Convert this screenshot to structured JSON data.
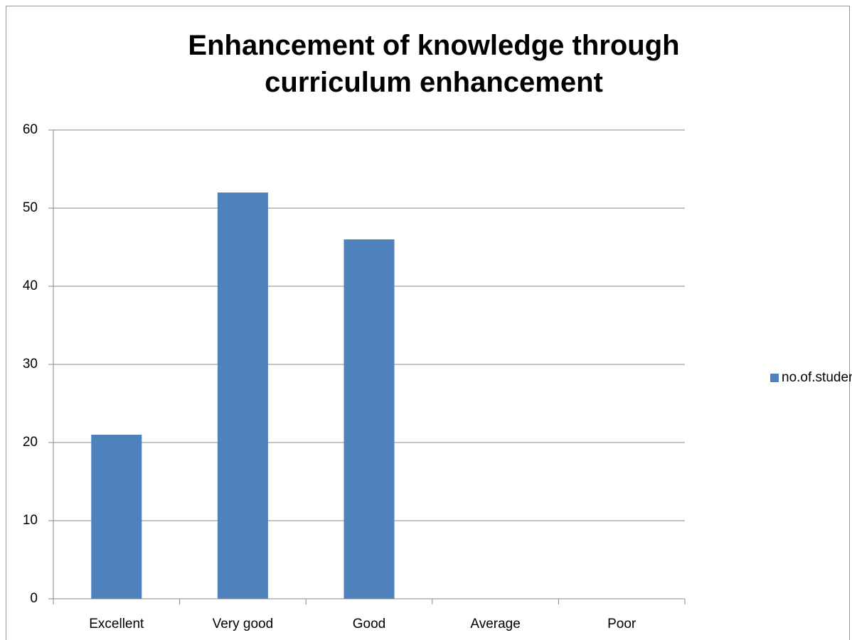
{
  "chart_data": {
    "type": "bar",
    "title": "Enhancement of knowledge through curriculum enhancement",
    "categories": [
      "Excellent",
      "Very good",
      "Good",
      "Average",
      "Poor"
    ],
    "series": [
      {
        "name": "no.of.students",
        "color": "#4f81bd",
        "values": [
          21,
          52,
          46,
          0,
          0
        ]
      }
    ],
    "ylim": [
      0,
      60
    ],
    "yticks": [
      0,
      10,
      20,
      30,
      40,
      50,
      60
    ],
    "grid": true,
    "legend": "right"
  }
}
